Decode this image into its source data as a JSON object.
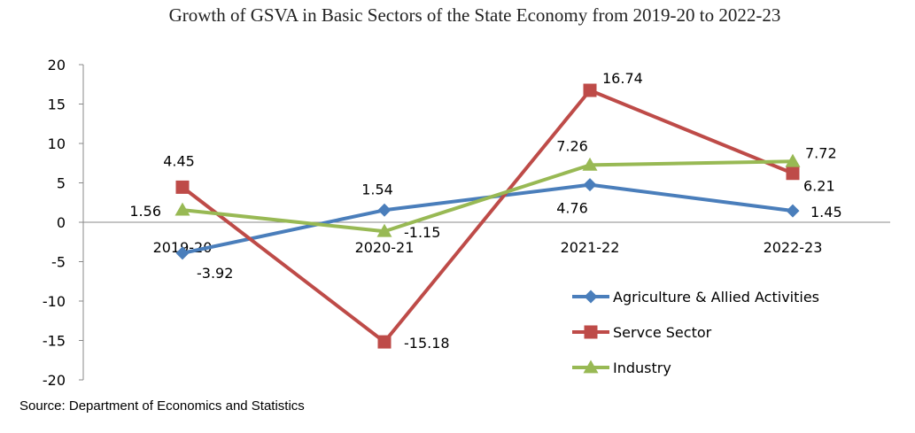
{
  "chart_data": {
    "type": "line",
    "title": "Growth of GSVA in Basic Sectors of the State Economy from 2019-20 to 2022-23",
    "categories": [
      "2019-20",
      "2020-21",
      "2021-22",
      "2022-23"
    ],
    "ylim": [
      -20,
      20
    ],
    "yticks": [
      "20",
      "15",
      "10",
      "5",
      "0",
      "-5",
      "-10",
      "-15",
      "-20"
    ],
    "grid": false,
    "legend_position": "bottom-right",
    "series": [
      {
        "name": "Agriculture & Allied Activities",
        "values": [
          -3.92,
          1.54,
          4.76,
          1.45
        ],
        "labels": [
          "-3.92",
          "1.54",
          "4.76",
          "1.45"
        ],
        "color": "#4a7ebb",
        "marker": "diamond"
      },
      {
        "name": "Servce Sector",
        "values": [
          4.45,
          -15.18,
          16.74,
          6.21
        ],
        "labels": [
          "4.45",
          "-15.18",
          "16.74",
          "6.21"
        ],
        "color": "#be4b48",
        "marker": "square"
      },
      {
        "name": "Industry",
        "values": [
          1.56,
          -1.15,
          7.26,
          7.72
        ],
        "labels": [
          "1.56",
          "-1.15",
          "7.26",
          "7.72"
        ],
        "color": "#98b954",
        "marker": "triangle"
      }
    ]
  },
  "source": "Source: Department of Economics and Statistics"
}
